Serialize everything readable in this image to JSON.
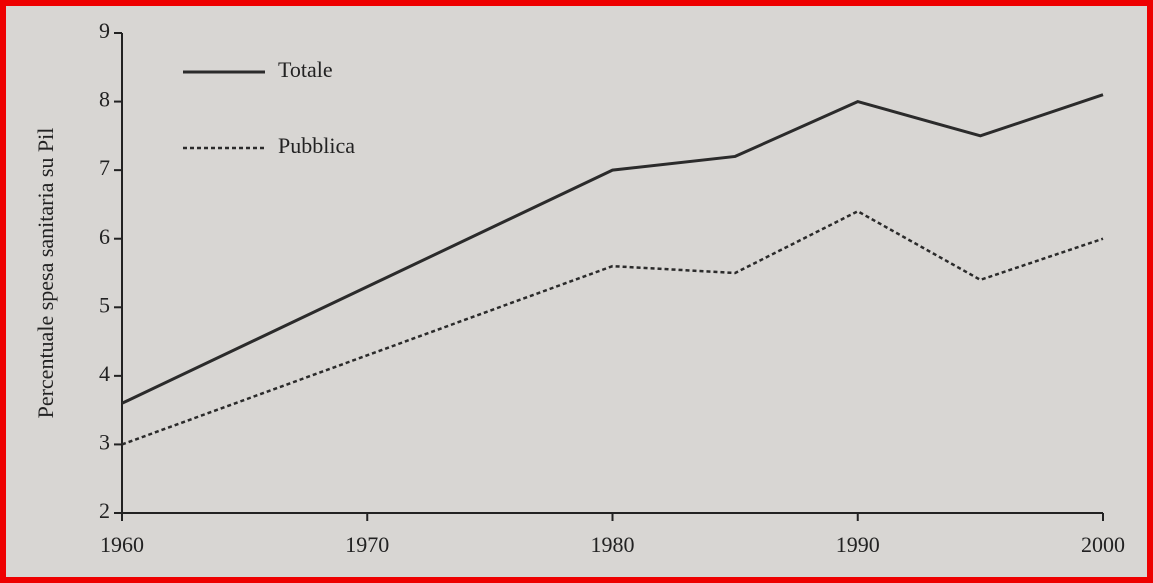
{
  "chart_data": {
    "type": "line",
    "ylabel": "Percentuale spesa sanitaria su Pil",
    "x": [
      1960,
      1980,
      1985,
      1990,
      1995,
      2000
    ],
    "series": [
      {
        "name": "Totale",
        "color": "#2b2b2b",
        "linestyle": "solid",
        "values": [
          3.6,
          7.0,
          7.2,
          8.0,
          7.5,
          8.1
        ]
      },
      {
        "name": "Pubblica",
        "color": "#2b2b2b",
        "linestyle": "dotted",
        "values": [
          3.0,
          5.6,
          5.5,
          6.4,
          5.4,
          6.0
        ]
      }
    ],
    "xlim": [
      1960,
      2000
    ],
    "xticks": [
      1960,
      1970,
      1980,
      1990,
      2000
    ],
    "ylim": [
      2,
      9
    ],
    "yticks": [
      2,
      3,
      4,
      5,
      6,
      7,
      8,
      9
    ],
    "grid": false,
    "legend": "upper left"
  }
}
